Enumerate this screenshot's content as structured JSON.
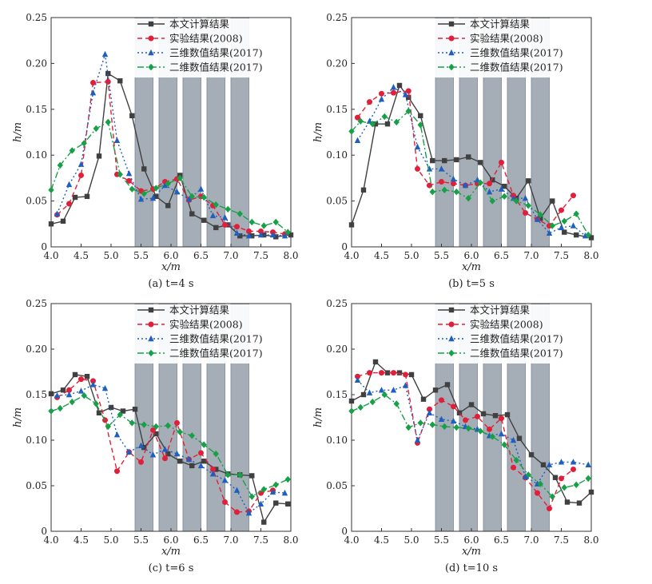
{
  "chart_data": [
    {
      "type": "line",
      "caption": "(a) t=4 s",
      "xlabel": "x/m",
      "ylabel": "h/m",
      "xlim": [
        4.0,
        8.0
      ],
      "ylim": [
        0,
        0.25
      ],
      "xticks": [
        "4.0",
        "4.5",
        "5.0",
        "5.5",
        "6.0",
        "6.5",
        "7.0",
        "7.5",
        "8.0"
      ],
      "yticks": [
        "0",
        "0.05",
        "0.10",
        "0.15",
        "0.20",
        "0.25"
      ],
      "legend_position": "top-right",
      "shaded_bands": [
        [
          5.4,
          5.7
        ],
        [
          5.8,
          6.1
        ],
        [
          6.2,
          6.5
        ],
        [
          6.6,
          6.9
        ],
        [
          7.0,
          7.3
        ]
      ],
      "series": [
        {
          "name": "本文计算结果",
          "color": "#404040",
          "dash": "solid",
          "marker": "square",
          "x": [
            4.0,
            4.2,
            4.4,
            4.6,
            4.8,
            4.95,
            5.15,
            5.35,
            5.55,
            5.75,
            5.95,
            6.15,
            6.35,
            6.55,
            6.75,
            6.95,
            7.15,
            7.35,
            7.55,
            7.75,
            8.0
          ],
          "y": [
            0.025,
            0.028,
            0.054,
            0.055,
            0.099,
            0.189,
            0.181,
            0.143,
            0.085,
            0.055,
            0.045,
            0.078,
            0.036,
            0.029,
            0.021,
            0.024,
            0.012,
            0.012,
            0.013,
            0.011,
            0.013
          ]
        },
        {
          "name": "实验结果(2008)",
          "color": "#e0203a",
          "dash": "6,4",
          "marker": "circle",
          "x": [
            4.1,
            4.3,
            4.5,
            4.7,
            4.95,
            5.1,
            5.3,
            5.5,
            5.7,
            5.9,
            6.1,
            6.3,
            6.5,
            6.7,
            6.9,
            7.1,
            7.3,
            7.5,
            7.7,
            7.9
          ],
          "y": [
            0.035,
            0.047,
            0.078,
            0.179,
            0.18,
            0.079,
            0.072,
            0.061,
            0.063,
            0.071,
            0.074,
            0.051,
            0.055,
            0.045,
            0.024,
            0.022,
            0.017,
            0.017,
            0.016,
            0.014
          ]
        },
        {
          "name": "三维数值结果(2017)",
          "color": "#1f5fbf",
          "dash": "2,3",
          "marker": "triangle",
          "x": [
            4.1,
            4.3,
            4.5,
            4.7,
            4.9,
            5.1,
            5.3,
            5.5,
            5.7,
            5.9,
            6.1,
            6.3,
            6.5,
            6.7,
            6.9,
            7.1,
            7.3,
            7.5,
            7.7,
            7.9
          ],
          "y": [
            0.036,
            0.068,
            0.09,
            0.168,
            0.21,
            0.116,
            0.08,
            0.052,
            0.053,
            0.067,
            0.06,
            0.052,
            0.063,
            0.034,
            0.032,
            0.015,
            0.012,
            0.013,
            0.013,
            0.012
          ]
        },
        {
          "name": "二维数值结果(2017)",
          "color": "#18a048",
          "dash": "8,3,2,3",
          "marker": "diamond",
          "x": [
            4.0,
            4.15,
            4.35,
            4.55,
            4.75,
            4.95,
            5.15,
            5.35,
            5.55,
            5.75,
            5.95,
            6.15,
            6.35,
            6.55,
            6.75,
            6.95,
            7.15,
            7.35,
            7.55,
            7.75,
            7.95
          ],
          "y": [
            0.062,
            0.089,
            0.105,
            0.113,
            0.129,
            0.136,
            0.079,
            0.063,
            0.058,
            0.064,
            0.069,
            0.075,
            0.055,
            0.054,
            0.046,
            0.041,
            0.036,
            0.027,
            0.023,
            0.027,
            0.016
          ]
        }
      ]
    },
    {
      "type": "line",
      "caption": "(b) t=5 s",
      "xlabel": "x/m",
      "ylabel": "h/m",
      "xlim": [
        4.0,
        8.0
      ],
      "ylim": [
        0,
        0.25
      ],
      "xticks": [
        "4.0",
        "4.5",
        "5.0",
        "5.5",
        "6.0",
        "6.5",
        "7.0",
        "7.5",
        "8.0"
      ],
      "yticks": [
        "0",
        "0.05",
        "0.10",
        "0.15",
        "0.20",
        "0.25"
      ],
      "legend_position": "top-right",
      "shaded_bands": [
        [
          5.4,
          5.7
        ],
        [
          5.8,
          6.1
        ],
        [
          6.2,
          6.5
        ],
        [
          6.6,
          6.9
        ],
        [
          7.0,
          7.3
        ]
      ],
      "series": [
        {
          "name": "本文计算结果",
          "color": "#404040",
          "dash": "solid",
          "marker": "square",
          "x": [
            4.0,
            4.2,
            4.4,
            4.6,
            4.8,
            4.95,
            5.15,
            5.35,
            5.55,
            5.75,
            5.95,
            6.15,
            6.35,
            6.55,
            6.75,
            6.95,
            7.15,
            7.35,
            7.55,
            7.75,
            8.0
          ],
          "y": [
            0.024,
            0.062,
            0.134,
            0.134,
            0.176,
            0.163,
            0.143,
            0.094,
            0.094,
            0.095,
            0.098,
            0.092,
            0.073,
            0.066,
            0.053,
            0.072,
            0.031,
            0.05,
            0.016,
            0.013,
            0.01
          ]
        },
        {
          "name": "实验结果(2008)",
          "color": "#e0203a",
          "dash": "6,4",
          "marker": "circle",
          "x": [
            4.1,
            4.3,
            4.5,
            4.7,
            4.95,
            5.1,
            5.3,
            5.5,
            5.7,
            5.9,
            6.1,
            6.3,
            6.5,
            6.7,
            6.9,
            7.1,
            7.3,
            7.5,
            7.7
          ],
          "y": [
            0.141,
            0.158,
            0.167,
            0.168,
            0.17,
            0.085,
            0.067,
            0.071,
            0.069,
            0.067,
            0.069,
            0.069,
            0.092,
            0.056,
            0.037,
            0.03,
            0.023,
            0.04,
            0.056
          ]
        },
        {
          "name": "三维数值结果(2017)",
          "color": "#1f5fbf",
          "dash": "2,3",
          "marker": "triangle",
          "x": [
            4.1,
            4.3,
            4.5,
            4.7,
            4.9,
            5.1,
            5.3,
            5.5,
            5.7,
            5.9,
            6.1,
            6.3,
            6.5,
            6.7,
            6.9,
            7.1,
            7.3,
            7.5,
            7.7,
            7.9
          ],
          "y": [
            0.116,
            0.137,
            0.161,
            0.174,
            0.166,
            0.109,
            0.085,
            0.085,
            0.074,
            0.067,
            0.073,
            0.06,
            0.063,
            0.053,
            0.053,
            0.03,
            0.015,
            0.021,
            0.023,
            0.012
          ]
        },
        {
          "name": "二维数值结果(2017)",
          "color": "#18a048",
          "dash": "8,3,2,3",
          "marker": "diamond",
          "x": [
            4.0,
            4.15,
            4.35,
            4.55,
            4.75,
            4.95,
            5.15,
            5.35,
            5.55,
            5.75,
            5.95,
            6.15,
            6.35,
            6.55,
            6.75,
            6.95,
            7.15,
            7.35,
            7.55,
            7.75,
            7.95
          ],
          "y": [
            0.126,
            0.137,
            0.134,
            0.142,
            0.136,
            0.148,
            0.133,
            0.06,
            0.062,
            0.06,
            0.053,
            0.07,
            0.05,
            0.055,
            0.05,
            0.045,
            0.035,
            0.023,
            0.028,
            0.036,
            0.013
          ]
        }
      ]
    },
    {
      "type": "line",
      "caption": "(c) t=6 s",
      "xlabel": "x/m",
      "ylabel": "h/m",
      "xlim": [
        4.0,
        8.0
      ],
      "ylim": [
        0,
        0.25
      ],
      "xticks": [
        "4.0",
        "4.5",
        "5.0",
        "5.5",
        "6.0",
        "6.5",
        "7.0",
        "7.5",
        "8.0"
      ],
      "yticks": [
        "0",
        "0.05",
        "0.10",
        "0.15",
        "0.20",
        "0.25"
      ],
      "legend_position": "top-right",
      "shaded_bands": [
        [
          5.4,
          5.7
        ],
        [
          5.8,
          6.1
        ],
        [
          6.2,
          6.5
        ],
        [
          6.6,
          6.9
        ],
        [
          7.0,
          7.3
        ]
      ],
      "series": [
        {
          "name": "本文计算结果",
          "color": "#404040",
          "dash": "solid",
          "marker": "square",
          "x": [
            4.0,
            4.2,
            4.4,
            4.6,
            4.8,
            5.0,
            5.2,
            5.4,
            5.55,
            5.75,
            5.95,
            6.15,
            6.35,
            6.55,
            6.75,
            6.95,
            7.15,
            7.35,
            7.55,
            7.75,
            7.95
          ],
          "y": [
            0.151,
            0.155,
            0.172,
            0.17,
            0.13,
            0.136,
            0.132,
            0.134,
            0.092,
            0.107,
            0.085,
            0.077,
            0.072,
            0.077,
            0.068,
            0.063,
            0.062,
            0.061,
            0.01,
            0.031,
            0.03
          ]
        },
        {
          "name": "实验结果(2008)",
          "color": "#e0203a",
          "dash": "6,4",
          "marker": "circle",
          "x": [
            4.1,
            4.3,
            4.5,
            4.7,
            4.9,
            5.1,
            5.3,
            5.5,
            5.7,
            5.9,
            6.1,
            6.3,
            6.5,
            6.7,
            6.9,
            7.1,
            7.3,
            7.5,
            7.7
          ],
          "y": [
            0.147,
            0.155,
            0.167,
            0.165,
            0.122,
            0.066,
            0.087,
            0.076,
            0.111,
            0.08,
            0.119,
            0.079,
            0.086,
            0.068,
            0.032,
            0.021,
            0.022,
            0.042,
            0.045
          ]
        },
        {
          "name": "三维数值结果(2017)",
          "color": "#1f5fbf",
          "dash": "2,3",
          "marker": "triangle",
          "x": [
            4.1,
            4.3,
            4.5,
            4.7,
            4.9,
            5.1,
            5.3,
            5.5,
            5.7,
            5.9,
            6.1,
            6.3,
            6.5,
            6.7,
            6.9,
            7.1,
            7.3,
            7.5,
            7.7,
            7.9
          ],
          "y": [
            0.149,
            0.15,
            0.154,
            0.161,
            0.157,
            0.106,
            0.087,
            0.094,
            0.084,
            0.09,
            0.085,
            0.079,
            0.072,
            0.063,
            0.056,
            0.045,
            0.02,
            0.03,
            0.043,
            0.042
          ]
        },
        {
          "name": "二维数值结果(2017)",
          "color": "#18a048",
          "dash": "8,3,2,3",
          "marker": "diamond",
          "x": [
            4.0,
            4.15,
            4.35,
            4.55,
            4.75,
            4.95,
            5.15,
            5.35,
            5.55,
            5.75,
            5.95,
            6.15,
            6.35,
            6.55,
            6.75,
            6.95,
            7.15,
            7.35,
            7.55,
            7.75,
            7.95
          ],
          "y": [
            0.132,
            0.135,
            0.142,
            0.149,
            0.14,
            0.115,
            0.128,
            0.119,
            0.117,
            0.115,
            0.116,
            0.109,
            0.105,
            0.095,
            0.085,
            0.062,
            0.062,
            0.038,
            0.046,
            0.051,
            0.057
          ]
        }
      ]
    },
    {
      "type": "line",
      "caption": "(d) t=10 s",
      "xlabel": "x/m",
      "ylabel": "h/m",
      "xlim": [
        4.0,
        8.0
      ],
      "ylim": [
        0,
        0.25
      ],
      "xticks": [
        "4.0",
        "4.5",
        "5.0",
        "5.5",
        "6.0",
        "6.5",
        "7.0",
        "7.5",
        "8.0"
      ],
      "yticks": [
        "0",
        "0.05",
        "0.10",
        "0.15",
        "0.20",
        "0.25"
      ],
      "legend_position": "top-right",
      "shaded_bands": [
        [
          5.4,
          5.7
        ],
        [
          5.8,
          6.1
        ],
        [
          6.2,
          6.5
        ],
        [
          6.6,
          6.9
        ],
        [
          7.0,
          7.3
        ]
      ],
      "series": [
        {
          "name": "本文计算结果",
          "color": "#404040",
          "dash": "solid",
          "marker": "square",
          "x": [
            4.0,
            4.2,
            4.4,
            4.6,
            4.8,
            5.0,
            5.2,
            5.4,
            5.6,
            5.8,
            6.0,
            6.2,
            6.4,
            6.6,
            6.8,
            7.0,
            7.2,
            7.4,
            7.6,
            7.8,
            8.0
          ],
          "y": [
            0.143,
            0.15,
            0.186,
            0.174,
            0.174,
            0.172,
            0.145,
            0.155,
            0.161,
            0.13,
            0.139,
            0.129,
            0.127,
            0.128,
            0.102,
            0.084,
            0.073,
            0.059,
            0.032,
            0.031,
            0.043
          ]
        },
        {
          "name": "实验结果(2008)",
          "color": "#e0203a",
          "dash": "6,4",
          "marker": "circle",
          "x": [
            4.1,
            4.3,
            4.5,
            4.7,
            4.9,
            5.1,
            5.3,
            5.5,
            5.7,
            5.9,
            6.1,
            6.3,
            6.5,
            6.7,
            6.9,
            7.1,
            7.3,
            7.5,
            7.7
          ],
          "y": [
            0.17,
            0.174,
            0.174,
            0.174,
            0.172,
            0.097,
            0.134,
            0.144,
            0.137,
            0.122,
            0.126,
            0.112,
            0.124,
            0.07,
            0.059,
            0.042,
            0.025,
            0.058,
            0.068
          ]
        },
        {
          "name": "三维数值结果(2017)",
          "color": "#1f5fbf",
          "dash": "2,3",
          "marker": "triangle",
          "x": [
            4.1,
            4.3,
            4.5,
            4.7,
            4.9,
            5.1,
            5.3,
            5.5,
            5.7,
            5.9,
            6.1,
            6.3,
            6.5,
            6.7,
            6.9,
            7.1,
            7.3,
            7.5,
            7.7,
            7.95
          ],
          "y": [
            0.166,
            0.152,
            0.155,
            0.155,
            0.16,
            0.1,
            0.13,
            0.123,
            0.121,
            0.115,
            0.112,
            0.105,
            0.107,
            0.1,
            0.06,
            0.052,
            0.073,
            0.076,
            0.076,
            0.073
          ]
        },
        {
          "name": "二维数值结果(2017)",
          "color": "#18a048",
          "dash": "8,3,2,3",
          "marker": "diamond",
          "x": [
            4.0,
            4.15,
            4.35,
            4.55,
            4.75,
            4.95,
            5.15,
            5.35,
            5.55,
            5.75,
            5.95,
            6.15,
            6.35,
            6.55,
            6.75,
            6.95,
            7.15,
            7.35,
            7.55,
            7.75,
            7.95
          ],
          "y": [
            0.132,
            0.136,
            0.142,
            0.15,
            0.14,
            0.114,
            0.119,
            0.117,
            0.115,
            0.114,
            0.113,
            0.11,
            0.104,
            0.095,
            0.078,
            0.062,
            0.052,
            0.038,
            0.048,
            0.051,
            0.058
          ]
        }
      ]
    }
  ]
}
